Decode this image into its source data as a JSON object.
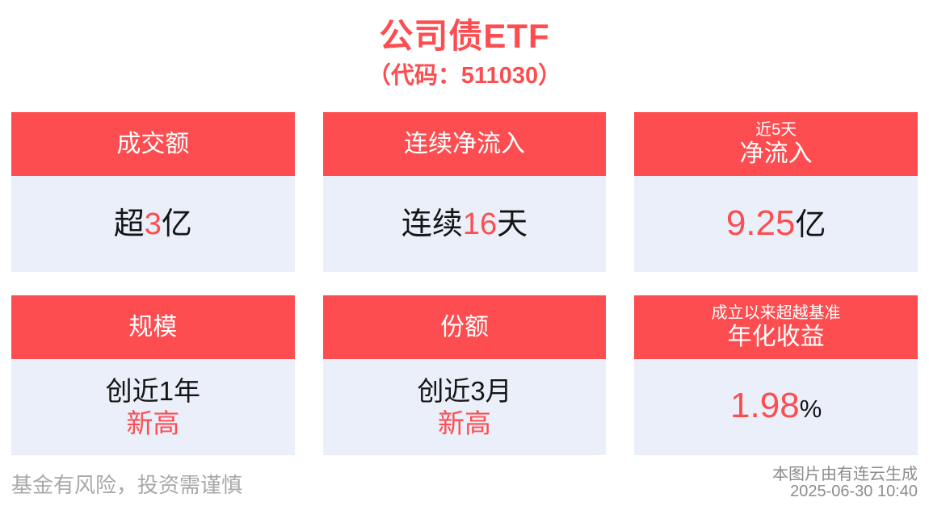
{
  "page": {
    "title": "公司债ETF",
    "subtitle": "（代码：511030）"
  },
  "cards": [
    {
      "header_main": "成交额",
      "value_prefix": "超",
      "value_highlight": "3",
      "value_suffix": "亿"
    },
    {
      "header_main": "连续净流入",
      "value_prefix": "连续",
      "value_highlight": "16",
      "value_suffix": "天"
    },
    {
      "header_top": "近5天",
      "header_main": "净流入",
      "value_highlight": "9.25",
      "value_suffix": "亿"
    },
    {
      "header_main": "规模",
      "value_line1": "创近1年",
      "value_line2": "新高"
    },
    {
      "header_main": "份额",
      "value_line1": "创近3月",
      "value_line2": "新高"
    },
    {
      "header_top": "成立以来超越基准",
      "header_main": "年化收益",
      "value_highlight": "1.98",
      "value_suffix": "%"
    }
  ],
  "footer": {
    "disclaimer": "基金有风险，投资需谨慎",
    "source": "本图片由有连云生成",
    "timestamp": "2025-06-30 10:40"
  },
  "colors": {
    "accent_red": "#fd4d50",
    "card_body_bg": "#ebeffa",
    "text_dark": "#141414",
    "disclaimer_gray": "#a8a8a8",
    "source_gray": "#8c8c8c"
  }
}
